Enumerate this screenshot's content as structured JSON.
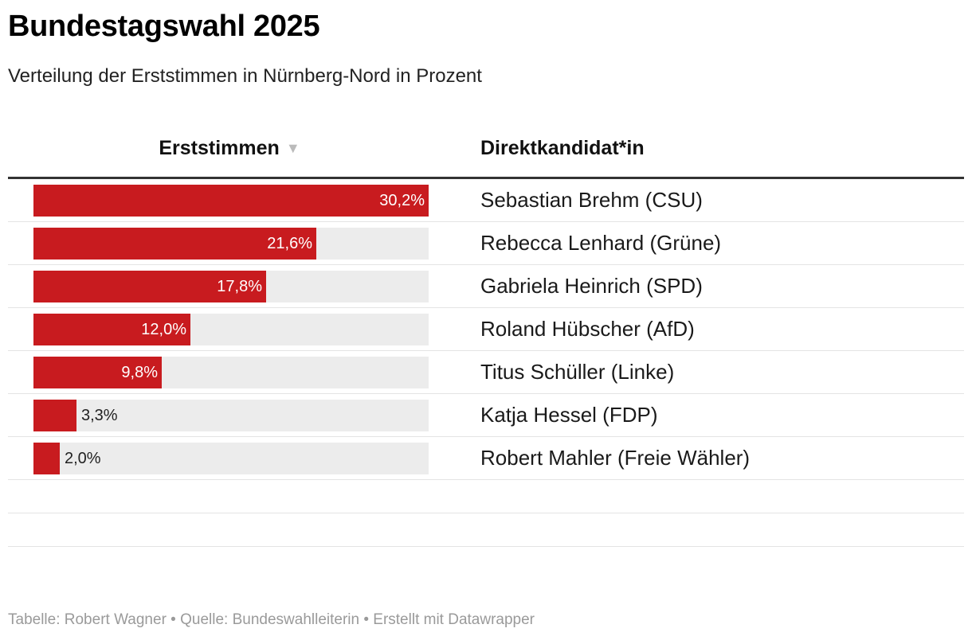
{
  "header": {
    "title": "Bundestagswahl 2025",
    "subtitle": "Verteilung der Erststimmen in Nürnberg-Nord in Prozent"
  },
  "table": {
    "col_votes": "Erststimmen",
    "col_candidate": "Direktkandidat*in",
    "sort_icon": "▼"
  },
  "chart_data": {
    "type": "bar",
    "title": "Bundestagswahl 2025",
    "subtitle": "Verteilung der Erststimmen in Nürnberg-Nord in Prozent",
    "xlabel": "Erststimmen",
    "ylabel": "Direktkandidat*in",
    "xlim": [
      0,
      30.2
    ],
    "categories": [
      "Sebastian Brehm (CSU)",
      "Rebecca Lenhard (Grüne)",
      "Gabriela Heinrich (SPD)",
      "Roland Hübscher (AfD)",
      "Titus Schüller (Linke)",
      "Katja Hessel (FDP)",
      "Robert Mahler (Freie Wähler)"
    ],
    "values": [
      30.2,
      21.6,
      17.8,
      12.0,
      9.8,
      3.3,
      2.0
    ],
    "labels": [
      "30,2%",
      "21,6%",
      "17,8%",
      "12,0%",
      "9,8%",
      "3,3%",
      "2,0%"
    ],
    "bar_color": "#c81b1f",
    "track_color": "#ececec"
  },
  "footer": {
    "text": "Tabelle: Robert Wagner • Quelle: Bundeswahlleiterin • Erstellt mit Datawrapper"
  }
}
